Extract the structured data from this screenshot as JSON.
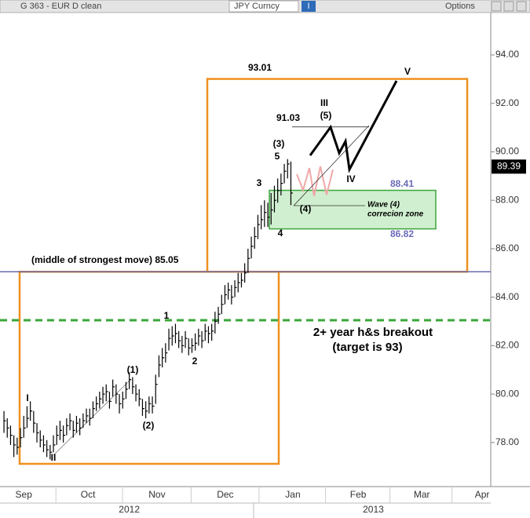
{
  "header": {
    "security": "G 363 - EUR D clean",
    "ticker": "JPY Curncy",
    "button": "I",
    "options": "Options"
  },
  "chart_data": {
    "type": "ohlc",
    "categories": [
      null,
      null,
      null,
      null,
      null,
      null,
      null,
      null,
      null,
      null,
      null,
      null,
      null,
      null,
      null,
      null,
      null,
      null,
      null,
      null,
      null,
      null,
      null,
      null,
      null,
      null,
      null,
      null,
      null,
      null,
      null,
      null,
      null,
      null,
      null,
      null,
      null,
      null,
      null,
      null,
      null,
      null,
      null,
      null,
      null,
      null,
      null,
      null,
      null,
      null,
      null,
      null,
      null,
      null,
      null,
      null,
      null,
      null,
      null,
      null,
      null,
      null,
      null,
      null,
      null,
      null,
      null,
      null,
      null,
      null,
      null,
      null,
      null,
      null,
      null,
      null,
      null,
      null,
      null,
      null,
      null,
      null,
      null,
      null,
      null,
      null,
      null,
      null
    ],
    "high": [
      79.3,
      79.0,
      78.7,
      78.3,
      78.2,
      78.6,
      79.1,
      79.5,
      79.7,
      79.3,
      78.8,
      78.5,
      78.3,
      78.1,
      77.9,
      78.3,
      78.7,
      78.9,
      78.7,
      79.0,
      79.2,
      78.9,
      79.1,
      79.0,
      79.2,
      79.4,
      79.4,
      79.7,
      79.9,
      80.1,
      80.3,
      80.4,
      80.1,
      80.6,
      80.4,
      80.0,
      80.1,
      80.5,
      80.9,
      80.7,
      80.4,
      80.2,
      79.8,
      79.7,
      79.9,
      79.9,
      80.8,
      81.6,
      81.9,
      82.1,
      82.7,
      82.8,
      82.9,
      82.6,
      82.4,
      82.6,
      82.3,
      82.3,
      82.5,
      82.7,
      82.6,
      82.9,
      82.8,
      82.9,
      83.4,
      83.6,
      84.1,
      84.5,
      84.6,
      84.5,
      84.7,
      85.0,
      85.0,
      85.4,
      86.0,
      86.5,
      86.9,
      87.4,
      87.8,
      88.0,
      87.9,
      88.3,
      88.6,
      88.9,
      89.1,
      89.5,
      89.7,
      89.6
    ],
    "low": [
      78.4,
      78.2,
      77.9,
      77.4,
      77.5,
      77.8,
      78.2,
      78.6,
      78.9,
      78.4,
      78.0,
      77.8,
      77.6,
      77.4,
      77.3,
      77.6,
      77.9,
      78.1,
      78.0,
      78.3,
      78.5,
      78.2,
      78.4,
      78.3,
      78.6,
      78.8,
      78.7,
      79.0,
      79.3,
      79.4,
      79.6,
      79.7,
      79.4,
      79.9,
      79.6,
      79.2,
      79.4,
      79.8,
      80.2,
      80.0,
      79.7,
      79.5,
      79.1,
      79.0,
      79.2,
      79.2,
      79.6,
      80.7,
      81.1,
      81.3,
      81.8,
      82.0,
      82.1,
      81.9,
      81.7,
      81.9,
      81.6,
      81.7,
      81.8,
      82.0,
      81.9,
      82.2,
      82.1,
      82.2,
      82.5,
      82.9,
      83.3,
      83.7,
      83.9,
      83.7,
      84.0,
      84.2,
      84.4,
      84.6,
      85.0,
      85.6,
      86.0,
      86.4,
      86.8,
      86.9,
      86.9,
      87.0,
      87.5,
      87.9,
      88.2,
      88.7,
      88.9,
      87.8
    ],
    "close": [
      78.9,
      78.6,
      78.3,
      77.9,
      77.8,
      78.2,
      78.6,
      79.0,
      79.3,
      78.8,
      78.4,
      78.1,
      77.9,
      77.7,
      77.6,
      77.9,
      78.3,
      78.5,
      78.3,
      78.7,
      78.9,
      78.5,
      78.8,
      78.6,
      78.9,
      79.1,
      79.0,
      79.4,
      79.6,
      79.8,
      80.0,
      80.1,
      79.7,
      80.3,
      80.0,
      79.6,
      79.8,
      80.2,
      80.6,
      80.3,
      80.0,
      79.8,
      79.4,
      79.3,
      79.6,
      79.5,
      80.4,
      81.2,
      81.5,
      81.7,
      82.3,
      82.4,
      82.5,
      82.2,
      82.0,
      82.3,
      81.9,
      82.0,
      82.1,
      82.4,
      82.2,
      82.6,
      82.5,
      82.6,
      83.0,
      83.3,
      83.7,
      84.1,
      84.3,
      84.0,
      84.4,
      84.6,
      84.7,
      85.0,
      85.6,
      86.1,
      86.5,
      87.0,
      87.2,
      87.5,
      87.3,
      87.6,
      88.0,
      88.4,
      88.7,
      89.2,
      89.5,
      88.3
    ],
    "color": "#000000",
    "xlim": [
      -1.2,
      147.6
    ],
    "xticks": [
      {
        "value": 6,
        "label": "Sep"
      },
      {
        "value": 25.5,
        "label": "Oct"
      },
      {
        "value": 46.4,
        "label": "Nov"
      },
      {
        "value": 67.1,
        "label": "Dec"
      },
      {
        "value": 87.6,
        "label": "Jan"
      },
      {
        "value": 107.4,
        "label": "Feb"
      },
      {
        "value": 126.7,
        "label": "Mar"
      },
      {
        "value": 145,
        "label": "Apr"
      }
    ],
    "year_labels": [
      {
        "value": 38,
        "label": "2012"
      },
      {
        "value": 112,
        "label": "2013"
      }
    ],
    "ylim": [
      76.18,
      95.75
    ],
    "yticks": [
      {
        "value": 78,
        "label": "78.00"
      },
      {
        "value": 80,
        "label": "80.00"
      },
      {
        "value": 82,
        "label": "82.00"
      },
      {
        "value": 84,
        "label": "84.00"
      },
      {
        "value": 86,
        "label": "86.00"
      },
      {
        "value": 88,
        "label": "88.00"
      },
      {
        "value": 90,
        "label": "90.00"
      },
      {
        "value": 92,
        "label": "92.00"
      },
      {
        "value": 94,
        "label": "94.00"
      }
    ],
    "last_price": 89.39,
    "midline": 85.05,
    "midline_label": "(middle of strongest move) 85.05",
    "breakout_line": 83.05,
    "target_box_top": 93.01,
    "lower_box_bottom": 77.12,
    "wave5_level": 91.03,
    "zone_top": 88.41,
    "zone_bottom": 86.82,
    "annotations": [
      "V",
      "III",
      "(5)",
      "(3)",
      "5",
      "3",
      "(4)",
      "4",
      "IV",
      "Wave (4)",
      "correcion zone",
      "1",
      "2",
      "(1)",
      "(2)",
      "I",
      "II",
      "2+ year h&s breakout",
      "(target is 93)"
    ]
  }
}
